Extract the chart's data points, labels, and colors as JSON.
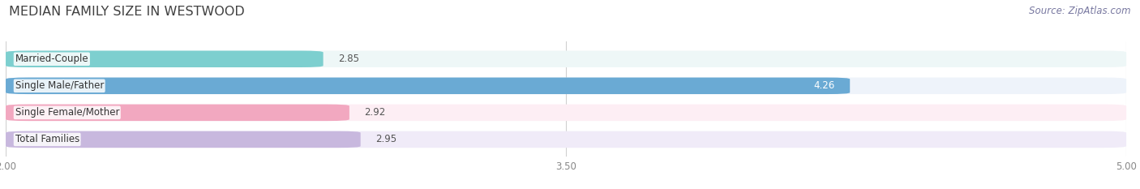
{
  "title": "MEDIAN FAMILY SIZE IN WESTWOOD",
  "source": "Source: ZipAtlas.com",
  "categories": [
    "Married-Couple",
    "Single Male/Father",
    "Single Female/Mother",
    "Total Families"
  ],
  "values": [
    2.85,
    4.26,
    2.92,
    2.95
  ],
  "bar_colors": [
    "#7dcfcf",
    "#6aaad4",
    "#f2a8c0",
    "#c8b8de"
  ],
  "bar_background_colors": [
    "#eef7f7",
    "#eef3fa",
    "#fdeef4",
    "#f0ebf8"
  ],
  "xlim": [
    2.0,
    5.0
  ],
  "xticks": [
    2.0,
    3.5,
    5.0
  ],
  "value_inside": [
    false,
    true,
    false,
    false
  ],
  "background_color": "#ffffff",
  "bar_height": 0.62,
  "title_fontsize": 11.5,
  "label_fontsize": 8.5,
  "value_fontsize": 8.5,
  "tick_fontsize": 8.5,
  "source_fontsize": 8.5,
  "gridline_color": "#d0d0d0",
  "title_color": "#404040",
  "label_color": "#333333",
  "value_color_outside": "#555555",
  "tick_color": "#888888",
  "source_color": "#7878a0"
}
